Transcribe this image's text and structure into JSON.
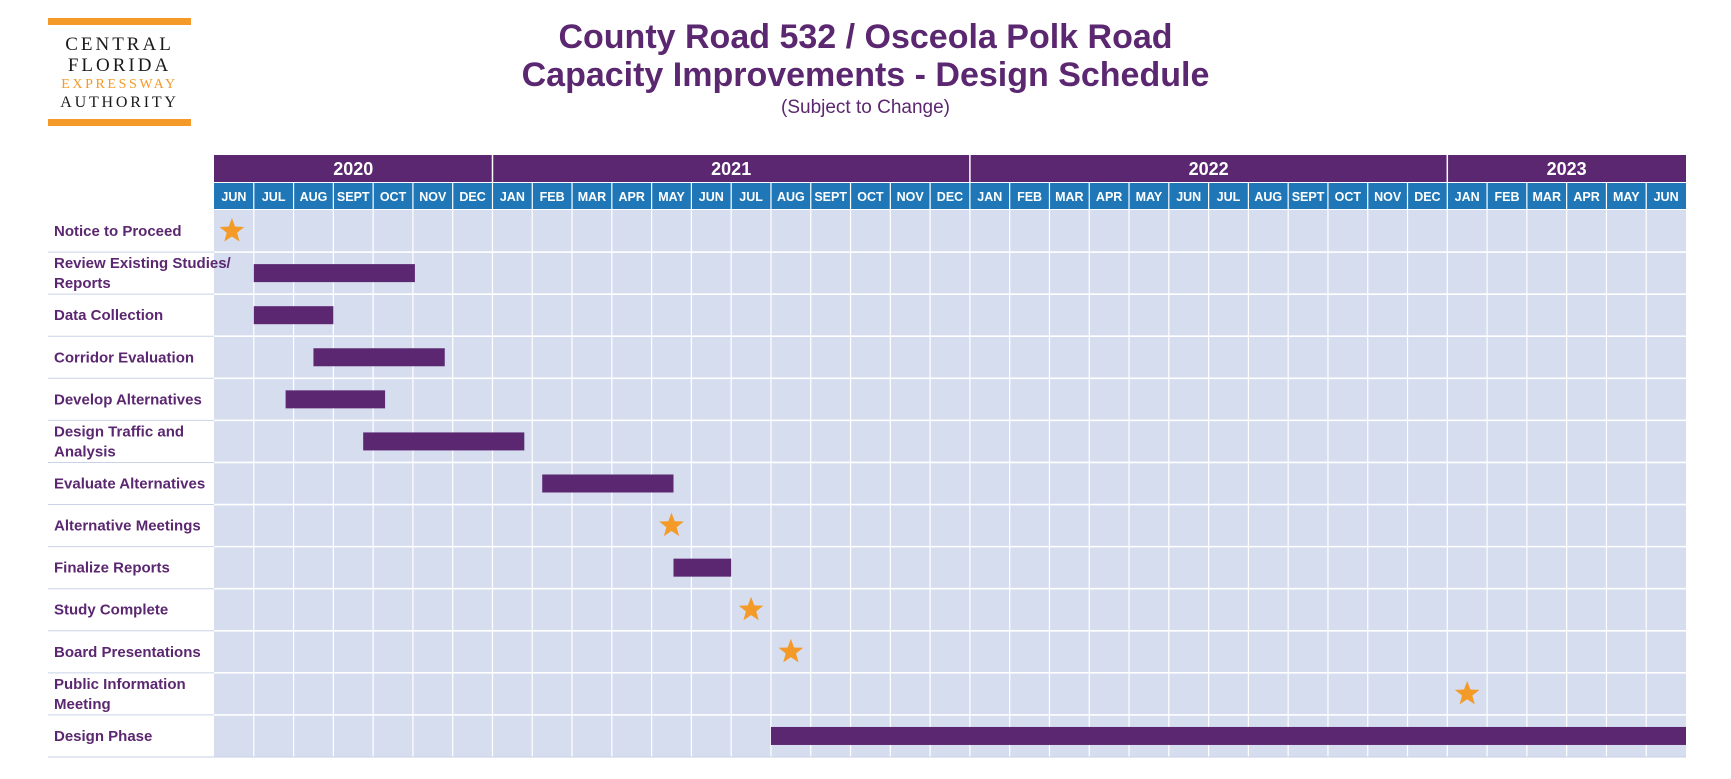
{
  "logo": {
    "line1": "CENTRAL",
    "line2": "FLORIDA",
    "line3": "EXPRESSWAY",
    "line4": "AUTHORITY"
  },
  "header": {
    "title_line1": "County Road 532 / Osceola Polk Road",
    "title_line2": "Capacity Improvements - Design Schedule",
    "subtitle": "(Subject to Change)"
  },
  "colors": {
    "purple": "#5b2770",
    "blue": "#1f77b8",
    "grid_fill": "#d5ddef",
    "orange": "#f39a28",
    "task_text": "#5b2770"
  },
  "chart_data": {
    "type": "gantt",
    "years": [
      {
        "label": "2020",
        "months": 7
      },
      {
        "label": "2021",
        "months": 12
      },
      {
        "label": "2022",
        "months": 12
      },
      {
        "label": "2023",
        "months": 6
      }
    ],
    "months": [
      "JUN",
      "JUL",
      "AUG",
      "SEPT",
      "OCT",
      "NOV",
      "DEC",
      "JAN",
      "FEB",
      "MAR",
      "APR",
      "MAY",
      "JUN",
      "JUL",
      "AUG",
      "SEPT",
      "OCT",
      "NOV",
      "DEC",
      "JAN",
      "FEB",
      "MAR",
      "APR",
      "MAY",
      "JUN",
      "JUL",
      "AUG",
      "SEPT",
      "OCT",
      "NOV",
      "DEC",
      "JAN",
      "FEB",
      "MAR",
      "APR",
      "MAY",
      "JUN"
    ],
    "tasks": [
      {
        "label": [
          "Notice to Proceed"
        ],
        "type": "milestone",
        "at": 0.45
      },
      {
        "label": [
          "Review Existing Studies/",
          "Reports"
        ],
        "type": "bar",
        "start": 1.0,
        "end": 5.05
      },
      {
        "label": [
          "Data Collection"
        ],
        "type": "bar",
        "start": 1.0,
        "end": 3.0
      },
      {
        "label": [
          "Corridor Evaluation"
        ],
        "type": "bar",
        "start": 2.5,
        "end": 5.8
      },
      {
        "label": [
          "Develop Alternatives"
        ],
        "type": "bar",
        "start": 1.8,
        "end": 4.3
      },
      {
        "label": [
          "Design Traffic and",
          "Analysis"
        ],
        "type": "bar",
        "start": 3.75,
        "end": 7.8
      },
      {
        "label": [
          "Evaluate Alternatives"
        ],
        "type": "bar",
        "start": 8.25,
        "end": 11.55
      },
      {
        "label": [
          "Alternative Meetings"
        ],
        "type": "milestone",
        "at": 11.5
      },
      {
        "label": [
          "Finalize Reports"
        ],
        "type": "bar",
        "start": 11.55,
        "end": 13.0
      },
      {
        "label": [
          "Study Complete"
        ],
        "type": "milestone",
        "at": 13.5
      },
      {
        "label": [
          "Board Presentations"
        ],
        "type": "milestone",
        "at": 14.5
      },
      {
        "label": [
          "Public Information",
          "Meeting"
        ],
        "type": "milestone",
        "at": 31.5
      },
      {
        "label": [
          "Design Phase"
        ],
        "type": "bar",
        "start": 14.0,
        "end": 37.0
      }
    ]
  }
}
